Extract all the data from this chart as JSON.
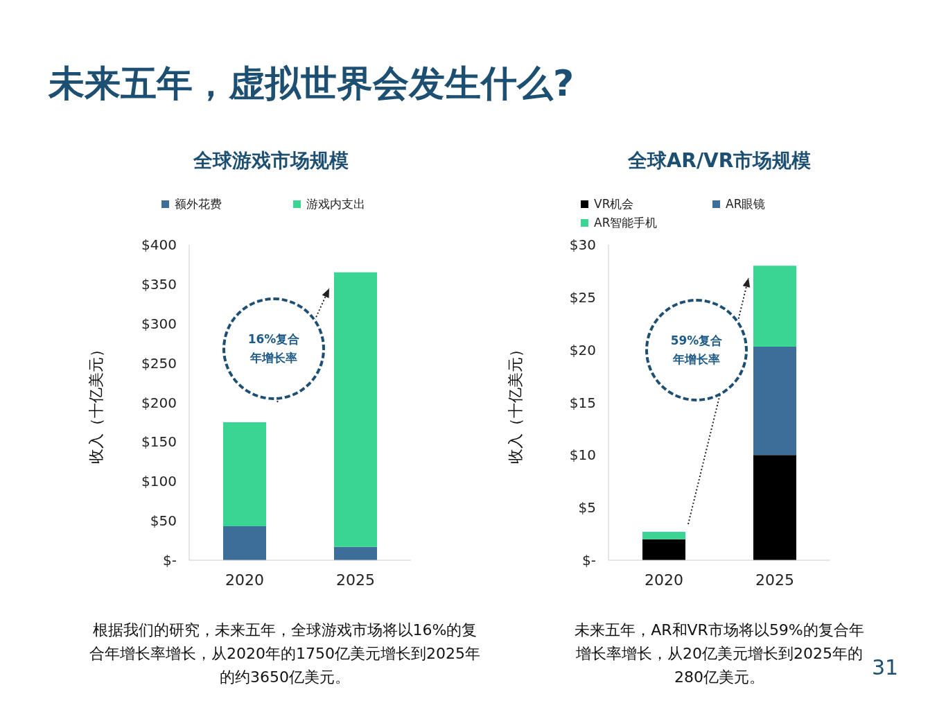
{
  "chart_data": [
    {
      "type": "bar",
      "title": "全球游戏市场规模",
      "ylabel": "收入（十亿美元）",
      "categories": [
        "2020",
        "2025"
      ],
      "stacked": true,
      "legend": "top left",
      "series": [
        {
          "name": "额外花费",
          "color": "#3d6e99",
          "values": [
            43,
            17
          ]
        },
        {
          "name": "游戏内支出",
          "color": "#3ad592",
          "values": [
            132,
            348
          ]
        }
      ],
      "ylim": [
        0,
        400
      ],
      "yticks": [
        {
          "value": 0,
          "label": "$-"
        },
        {
          "value": 50,
          "label": "$50"
        },
        {
          "value": 100,
          "label": "$100"
        },
        {
          "value": 150,
          "label": "$150"
        },
        {
          "value": 200,
          "label": "$200"
        },
        {
          "value": 250,
          "label": "$250"
        },
        {
          "value": 300,
          "label": "$300"
        },
        {
          "value": 350,
          "label": "$350"
        },
        {
          "value": 400,
          "label": "$400"
        }
      ],
      "annotations": [
        "16%复合年增长率",
        "根据我们的研究，未来五年，全球游戏市场将以16%的复合年增长率增长，从2020年的1750亿美元增长到2025年的约3650亿美元。",
        "未来五年，虚拟世界会发生什么?",
        "31"
      ]
    },
    {
      "type": "bar",
      "title": "全球AR/VR市场规模",
      "ylabel": "收入（十亿美元）",
      "categories": [
        "2020",
        "2025"
      ],
      "stacked": true,
      "legend": "top left",
      "series": [
        {
          "name": "VR机会",
          "color": "#000000",
          "values": [
            2,
            10
          ]
        },
        {
          "name": "AR眼镜",
          "color": "#3d6e99",
          "values": [
            0,
            10.3
          ]
        },
        {
          "name": "AR智能手机",
          "color": "#3ad592",
          "values": [
            0.7,
            7.7
          ]
        }
      ],
      "ylim": [
        0,
        30
      ],
      "yticks": [
        {
          "value": 0,
          "label": "$-"
        },
        {
          "value": 5,
          "label": "$5"
        },
        {
          "value": 10,
          "label": "$10"
        },
        {
          "value": 15,
          "label": "$15"
        },
        {
          "value": 20,
          "label": "$20"
        },
        {
          "value": 25,
          "label": "$25"
        },
        {
          "value": 30,
          "label": "$30"
        }
      ],
      "annotations": [
        "59%复合年增长率",
        "未来五年，AR和VR市场将以59%的复合年增长率增长，从20亿美元增长到2025年的280亿美元。"
      ]
    }
  ]
}
